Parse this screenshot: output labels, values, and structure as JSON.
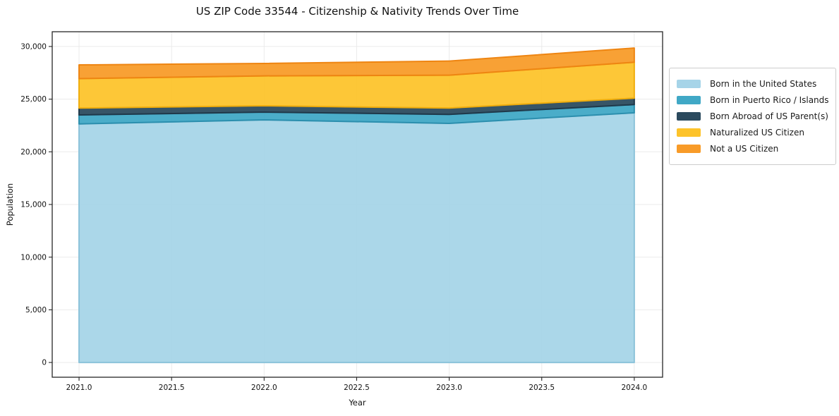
{
  "chart_data": {
    "type": "area",
    "stacked": true,
    "title": "US ZIP Code 33544 - Citizenship & Nativity Trends Over Time",
    "xlabel": "Year",
    "ylabel": "Population",
    "x": [
      2021,
      2022,
      2023,
      2024
    ],
    "series": [
      {
        "name": "Born in the United States",
        "color": "#a6d4e8",
        "edge": "#8cc3da",
        "values": [
          22650,
          23030,
          22700,
          23705
        ]
      },
      {
        "name": "Born in Puerto Rico / Islands",
        "color": "#40a8c6",
        "edge": "#2c8fae",
        "values": [
          850,
          740,
          850,
          780
        ]
      },
      {
        "name": "Born Abroad of US Parent(s)",
        "color": "#2b4a5e",
        "edge": "#20394a",
        "values": [
          650,
          600,
          600,
          605
        ]
      },
      {
        "name": "Naturalized US Citizen",
        "color": "#fdc32a",
        "edge": "#f0ad0c",
        "values": [
          2800,
          2840,
          3125,
          3415
        ]
      },
      {
        "name": "Not a US Citizen",
        "color": "#f89b28",
        "edge": "#ee8512",
        "values": [
          1300,
          1180,
          1340,
          1345
        ]
      }
    ],
    "totals": [
      28250,
      28390,
      28615,
      29850
    ],
    "xticks": [
      2021.0,
      2021.5,
      2022.0,
      2022.5,
      2023.0,
      2023.5,
      2024.0
    ],
    "yticks": [
      0,
      5000,
      10000,
      15000,
      20000,
      25000,
      30000
    ],
    "xlim": [
      2020.855,
      2024.153
    ],
    "ylim": [
      -1400,
      31400
    ],
    "grid": true,
    "grid_color": "#e8e8e8",
    "frame_color": "#262626",
    "fill_opacity": 0.94,
    "legend_position": "right"
  }
}
